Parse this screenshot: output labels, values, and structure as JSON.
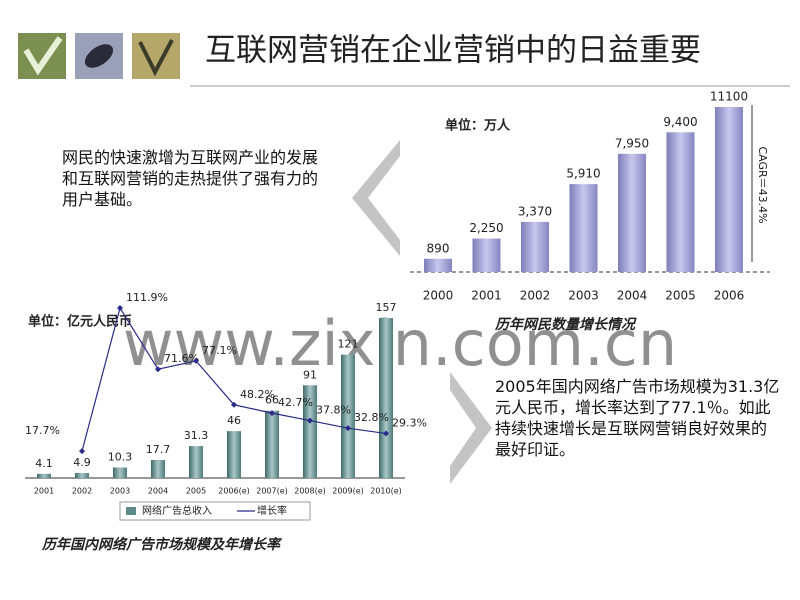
{
  "title": "互联网营销在企业营销中的日益重要",
  "text_blocks": [
    "网民的快速激增为互联网产业的发展和互联网营销的走热提供了强有力的用户基础。",
    "2005年国内网络广告市场规模为31.3亿元人民币，增长率达到了77.1％。如此持续快速增长是互联网营销良好效果的最好印证。"
  ],
  "watermark": "www.zixin.com.cn",
  "chart_data": [
    {
      "type": "bar",
      "title": "历年网民数量增长情况",
      "subtitle": "单位：万人",
      "annotation": "CAGR＝43.4%",
      "categories": [
        "2000",
        "2001",
        "2002",
        "2003",
        "2004",
        "2005",
        "2006"
      ],
      "values": [
        890,
        2250,
        3370,
        5910,
        7950,
        9400,
        11100
      ],
      "value_labels": [
        "890",
        "2,250",
        "3,370",
        "5,910",
        "7,950",
        "9,400",
        "11100"
      ],
      "color": "#9d9dd2"
    },
    {
      "type": "bar",
      "title": "历年国内网络广告市场规模及年增长率",
      "subtitle": "单位：亿元人民币",
      "categories": [
        "2001",
        "2002",
        "2003",
        "2004",
        "2005",
        "2006(e)",
        "2007(e)",
        "2008(e)",
        "2009(e)",
        "2010(e)"
      ],
      "series": [
        {
          "name": "网络广告总收入",
          "type": "bar",
          "color": "#5e8c8c",
          "values": [
            4.1,
            4.9,
            10.3,
            17.7,
            31.3,
            46,
            66,
            91,
            121,
            157
          ]
        },
        {
          "name": "增长率",
          "type": "line",
          "axis": "y2",
          "color": "#2a2a8a",
          "values": [
            null,
            17.7,
            111.9,
            71.6,
            77.1,
            48.2,
            42.7,
            37.8,
            32.8,
            29.3
          ],
          "value_labels": [
            null,
            "17.7%",
            "111.9%",
            "71.6%",
            "77.1%",
            "48.2%",
            "42.7%",
            "37.8%",
            "32.8%",
            "29.3%"
          ]
        }
      ],
      "legend": "bottom"
    }
  ]
}
